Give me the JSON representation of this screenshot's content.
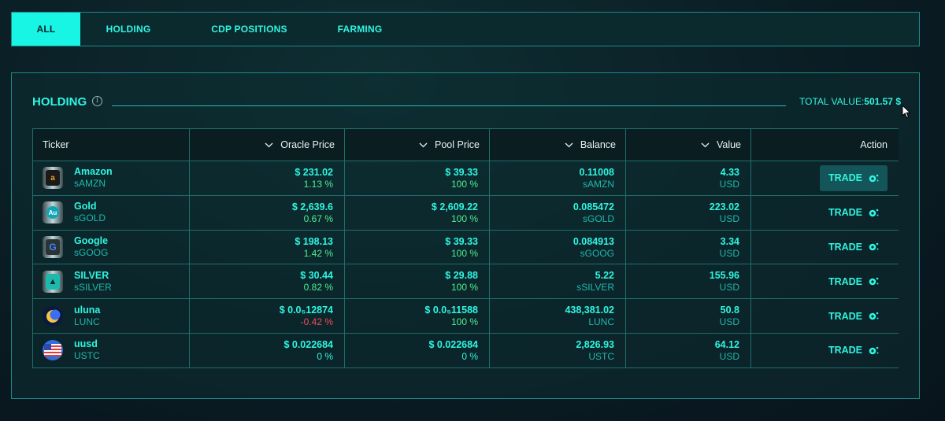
{
  "tabs": [
    {
      "label": "ALL",
      "active": true
    },
    {
      "label": "HOLDING"
    },
    {
      "label": "CDP POSITIONS"
    },
    {
      "label": "FARMING"
    }
  ],
  "section": {
    "title": "HOLDING",
    "total_label": "TOTAL VALUE:",
    "total_value": "501.57 $"
  },
  "table": {
    "headers": [
      "Ticker",
      "Oracle Price",
      "Pool Price",
      "Balance",
      "Value",
      "Action"
    ],
    "rows": [
      {
        "name": "Amazon",
        "symbol": "sAMZN",
        "logo": "amazon-logo-icon",
        "oracle": "$ 231.02",
        "oracle_change": "1.13 %",
        "pool": "$ 39.33",
        "pool_ratio": "100 %",
        "balance": "0.11008",
        "balance_unit": "sAMZN",
        "value": "4.33",
        "value_unit": "USD",
        "action": "TRADE"
      },
      {
        "name": "Gold",
        "symbol": "sGOLD",
        "logo": "gold-logo-icon",
        "oracle": "$ 2,639.6",
        "oracle_change": "0.67 %",
        "pool": "$ 2,609.22",
        "pool_ratio": "100 %",
        "balance": "0.085472",
        "balance_unit": "sGOLD",
        "value": "223.02",
        "value_unit": "USD",
        "action": "TRADE"
      },
      {
        "name": "Google",
        "symbol": "sGOOG",
        "logo": "google-logo-icon",
        "oracle": "$ 198.13",
        "oracle_change": "1.42 %",
        "pool": "$ 39.33",
        "pool_ratio": "100 %",
        "balance": "0.084913",
        "balance_unit": "sGOOG",
        "value": "3.34",
        "value_unit": "USD",
        "action": "TRADE"
      },
      {
        "name": "SILVER",
        "symbol": "sSILVER",
        "logo": "silver-logo-icon",
        "oracle": "$ 30.44",
        "oracle_change": "0.82 %",
        "pool": "$ 29.88",
        "pool_ratio": "100 %",
        "balance": "5.22",
        "balance_unit": "sSILVER",
        "value": "155.96",
        "value_unit": "USD",
        "action": "TRADE"
      },
      {
        "name": "uluna",
        "symbol": "LUNC",
        "logo": "luna-logo-icon",
        "oracle": "$ 0.0₅12874",
        "oracle_change": "-0.42 %",
        "pool": "$ 0.0₅11588",
        "pool_ratio": "100 %",
        "balance": "438,381.02",
        "balance_unit": "LUNC",
        "value": "50.8",
        "value_unit": "USD",
        "action": "TRADE"
      },
      {
        "name": "uusd",
        "symbol": "USTC",
        "logo": "ustc-logo-icon",
        "oracle": "$ 0.022684",
        "oracle_change": "0 %",
        "pool": "$ 0.022684",
        "pool_ratio": "0 %",
        "balance": "2,826.93",
        "balance_unit": "USTC",
        "value": "64.12",
        "value_unit": "USD",
        "action": "TRADE"
      }
    ]
  },
  "colors": {
    "accent": "#2ff5e0",
    "positive": "#4cf090",
    "negative": "#f2485a"
  }
}
